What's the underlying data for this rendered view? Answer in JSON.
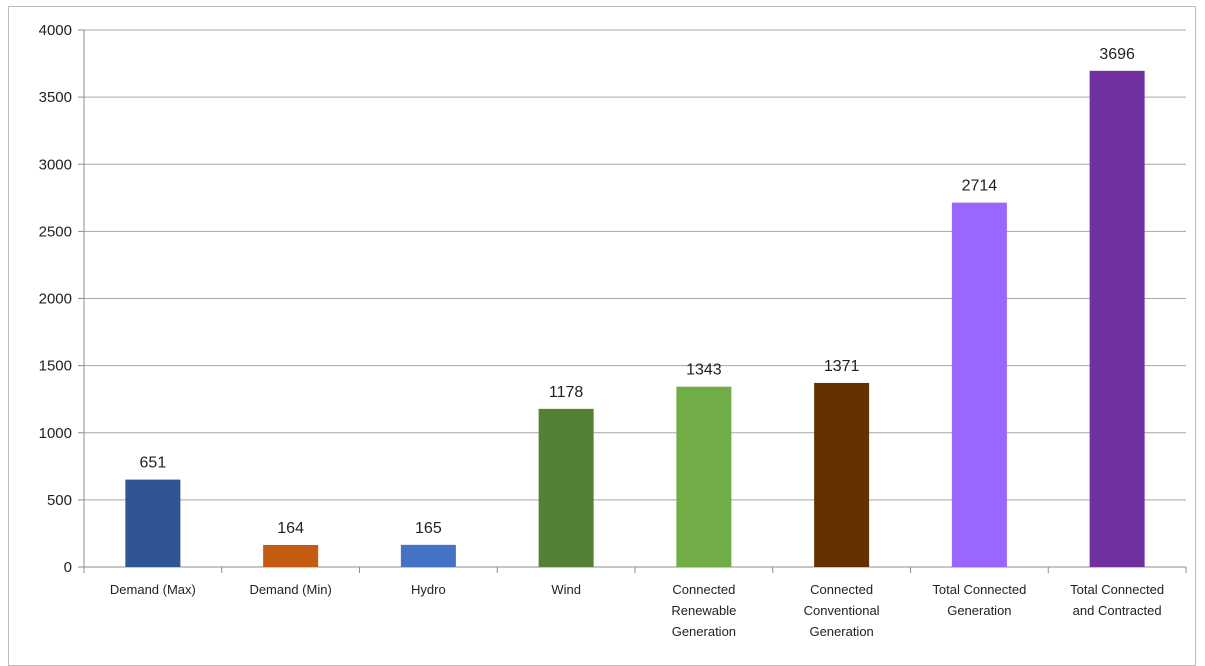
{
  "chart_data": {
    "type": "bar",
    "categories": [
      [
        "Demand (Max)"
      ],
      [
        "Demand (Min)"
      ],
      [
        "Hydro"
      ],
      [
        "Wind"
      ],
      [
        "Connected",
        "Renewable",
        "Generation"
      ],
      [
        "Connected",
        "Conventional",
        "Generation"
      ],
      [
        "Total Connected",
        "Generation"
      ],
      [
        "Total Connected",
        "and Contracted"
      ]
    ],
    "values": [
      651,
      164,
      165,
      1178,
      1343,
      1371,
      2714,
      3696
    ],
    "data_labels": [
      "651",
      "164",
      "165",
      "1178",
      "1343",
      "1371",
      "2714",
      "3696"
    ],
    "colors": [
      "#2F5597",
      "#C55A11",
      "#4472C4",
      "#538135",
      "#70AD47",
      "#633200",
      "#9966FF",
      "#7030A0"
    ],
    "title": "",
    "xlabel": "",
    "ylabel": "",
    "ylim": [
      0,
      4000
    ],
    "yticks": [
      0,
      500,
      1000,
      1500,
      2000,
      2500,
      3000,
      3500,
      4000
    ],
    "grid": true,
    "legend": "none"
  }
}
